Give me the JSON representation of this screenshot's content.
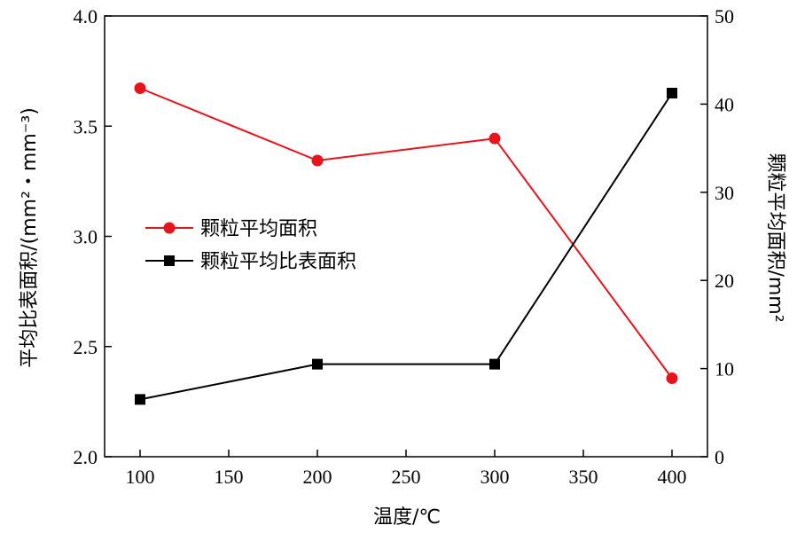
{
  "chart_data": {
    "type": "line",
    "x": [
      100,
      200,
      300,
      400
    ],
    "xlabel": "温度/℃",
    "xlim": [
      80,
      420
    ],
    "xticks": [
      100,
      150,
      200,
      250,
      300,
      350,
      400
    ],
    "ylabel_left": "平均比表面积/(mm²・mm⁻³)",
    "ylim_left": [
      2.0,
      4.0
    ],
    "yticks_left": [
      "2.0",
      "2.5",
      "3.0",
      "3.5",
      "4.0"
    ],
    "ylabel_right": "颗粒平均面积/mm²",
    "ylim_right": [
      0,
      50
    ],
    "yticks_right": [
      "0",
      "10",
      "20",
      "30",
      "40",
      "50"
    ],
    "grid": false,
    "legend_position": "center-left",
    "series": [
      {
        "name": "颗粒平均面积",
        "axis": "right",
        "color": "#e8141c",
        "marker": "circle",
        "values": [
          41.8,
          33.6,
          36.1,
          8.9
        ]
      },
      {
        "name": "颗粒平均比表面积",
        "axis": "left",
        "color": "#000000",
        "marker": "square",
        "values": [
          2.26,
          2.42,
          2.42,
          3.65
        ]
      }
    ]
  }
}
